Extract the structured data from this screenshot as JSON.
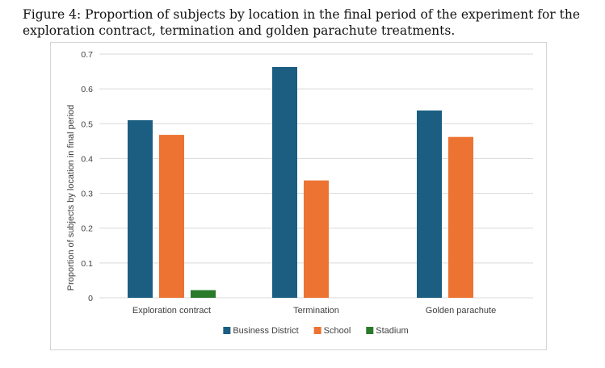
{
  "caption": "Figure 4: Proportion of subjects by location in the final period of the experiment for the exploration contract, termination and golden parachute treatments.",
  "chart_data": {
    "type": "bar",
    "title": "",
    "xlabel": "",
    "ylabel": "Proportion of subjects by location in final period",
    "ylim": [
      0,
      0.7
    ],
    "yticks": [
      0,
      0.1,
      0.2,
      0.3,
      0.4,
      0.5,
      0.6,
      0.7
    ],
    "ytick_labels": [
      "0",
      "0.1",
      "0.2",
      "0.3",
      "0.4",
      "0.5",
      "0.6",
      "0.7"
    ],
    "grid": true,
    "legend_position": "bottom",
    "categories": [
      "Exploration contract",
      "Termination",
      "Golden parachute"
    ],
    "series": [
      {
        "name": "Business District",
        "color": "#1b5e82",
        "values": [
          0.51,
          0.663,
          0.538
        ]
      },
      {
        "name": "School",
        "color": "#ed7332",
        "values": [
          0.468,
          0.337,
          0.462
        ]
      },
      {
        "name": "Stadium",
        "color": "#2a7a2a",
        "values": [
          0.022,
          0,
          0
        ]
      }
    ]
  }
}
